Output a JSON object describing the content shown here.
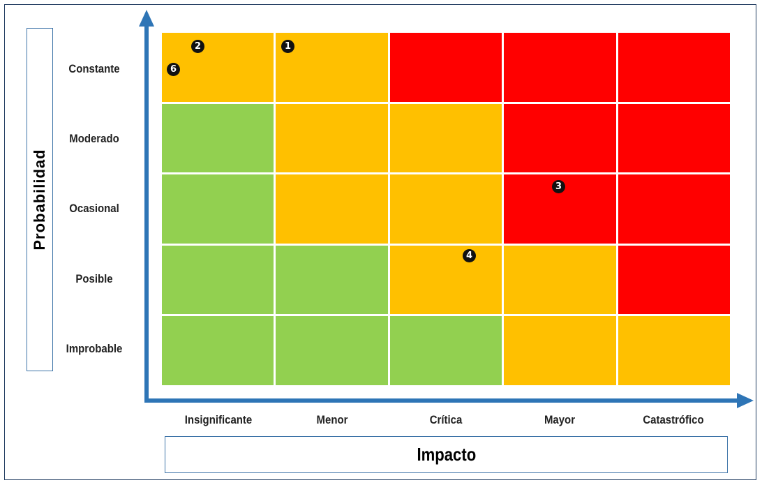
{
  "y_axis": {
    "title": "Probabilidad",
    "levels": [
      "Constante",
      "Moderado",
      "Ocasional",
      "Posible",
      "Improbable"
    ]
  },
  "x_axis": {
    "title": "Impacto",
    "levels": [
      "Insignificante",
      "Menor",
      "Crítica",
      "Mayor",
      "Catastrófico"
    ]
  },
  "colors": {
    "green": "#92d050",
    "amber": "#ffc000",
    "red": "#ff0000",
    "axis": "#2e75b6"
  },
  "matrix": [
    [
      "amber",
      "amber",
      "red",
      "red",
      "red"
    ],
    [
      "green",
      "amber",
      "amber",
      "red",
      "red"
    ],
    [
      "green",
      "amber",
      "amber",
      "red",
      "red"
    ],
    [
      "green",
      "green",
      "amber",
      "amber",
      "red"
    ],
    [
      "green",
      "green",
      "green",
      "amber",
      "amber"
    ]
  ],
  "risks": [
    {
      "id": "1",
      "probabilidad": "Constante",
      "impacto": "Menor"
    },
    {
      "id": "2",
      "probabilidad": "Constante",
      "impacto": "Insignificante"
    },
    {
      "id": "6",
      "probabilidad": "Constante",
      "impacto": "Insignificante"
    },
    {
      "id": "3",
      "probabilidad": "Ocasional",
      "impacto": "Mayor"
    },
    {
      "id": "4",
      "probabilidad": "Posible",
      "impacto": "Crítica"
    }
  ]
}
